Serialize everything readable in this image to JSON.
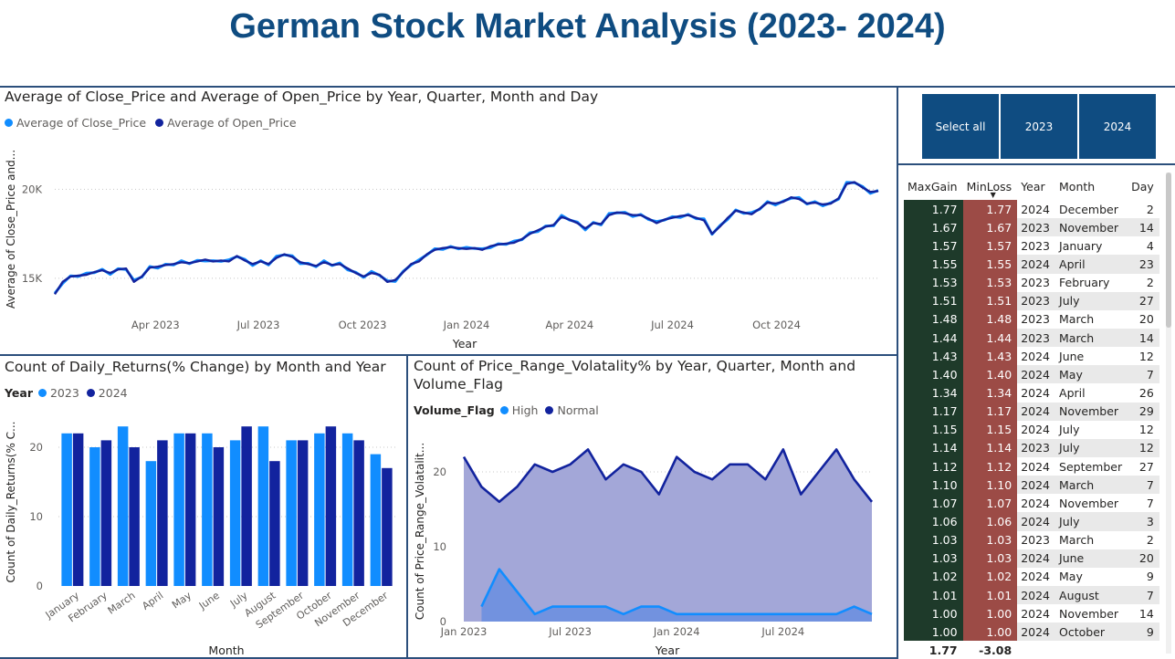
{
  "page_title": "German Stock Market Analysis (2023- 2024)",
  "colors": {
    "title": "#0f4c81",
    "light_series": "#118dff",
    "dark_series": "#12239e",
    "slicer": "#0f4c81",
    "gain_cell": "#1e3a2a",
    "loss_cell": "#9c4b46",
    "divider": "#2c4f7c"
  },
  "line_chart": {
    "title": "Average of Close_Price and Average of Open_Price by Year, Quarter, Month and Day",
    "chart_data": {
      "type": "line",
      "series": [
        {
          "name": "Average of Close_Price",
          "color": "#118dff"
        },
        {
          "name": "Average of Open_Price",
          "color": "#12239e"
        }
      ],
      "xlabel": "Year",
      "ylabel": "Average of Close_Price and...",
      "x_ticks": [
        "Apr 2023",
        "Jul 2023",
        "Oct 2023",
        "Jan 2024",
        "Apr 2024",
        "Jul 2024",
        "Oct 2024"
      ],
      "y_ticks": [
        "15K",
        "20K"
      ],
      "ylim": [
        13200,
        21200
      ],
      "xlim": [
        "2023-01-02",
        "2024-12-30"
      ],
      "points": [
        [
          "2023-01-02",
          14100
        ],
        [
          "2023-01-09",
          14800
        ],
        [
          "2023-01-16",
          15100
        ],
        [
          "2023-01-23",
          15150
        ],
        [
          "2023-01-30",
          15200
        ],
        [
          "2023-02-06",
          15350
        ],
        [
          "2023-02-13",
          15450
        ],
        [
          "2023-02-20",
          15300
        ],
        [
          "2023-02-27",
          15500
        ],
        [
          "2023-03-06",
          15550
        ],
        [
          "2023-03-13",
          14800
        ],
        [
          "2023-03-20",
          15100
        ],
        [
          "2023-03-27",
          15600
        ],
        [
          "2023-04-03",
          15650
        ],
        [
          "2023-04-10",
          15750
        ],
        [
          "2023-04-17",
          15800
        ],
        [
          "2023-04-24",
          15900
        ],
        [
          "2023-05-01",
          15850
        ],
        [
          "2023-05-08",
          15950
        ],
        [
          "2023-05-15",
          16050
        ],
        [
          "2023-05-22",
          15950
        ],
        [
          "2023-05-29",
          16000
        ],
        [
          "2023-06-05",
          15950
        ],
        [
          "2023-06-12",
          16250
        ],
        [
          "2023-06-19",
          16000
        ],
        [
          "2023-06-26",
          15800
        ],
        [
          "2023-07-03",
          15950
        ],
        [
          "2023-07-10",
          15800
        ],
        [
          "2023-07-17",
          16150
        ],
        [
          "2023-07-24",
          16350
        ],
        [
          "2023-07-31",
          16200
        ],
        [
          "2023-08-07",
          15900
        ],
        [
          "2023-08-14",
          15800
        ],
        [
          "2023-08-21",
          15700
        ],
        [
          "2023-08-28",
          15900
        ],
        [
          "2023-09-04",
          15750
        ],
        [
          "2023-09-11",
          15800
        ],
        [
          "2023-09-18",
          15550
        ],
        [
          "2023-09-25",
          15300
        ],
        [
          "2023-10-02",
          15100
        ],
        [
          "2023-10-09",
          15300
        ],
        [
          "2023-10-16",
          15200
        ],
        [
          "2023-10-23",
          14800
        ],
        [
          "2023-10-30",
          14900
        ],
        [
          "2023-11-06",
          15350
        ],
        [
          "2023-11-13",
          15800
        ],
        [
          "2023-11-20",
          15950
        ],
        [
          "2023-11-27",
          16350
        ],
        [
          "2023-12-04",
          16600
        ],
        [
          "2023-12-11",
          16700
        ],
        [
          "2023-12-18",
          16750
        ],
        [
          "2023-12-25",
          16700
        ],
        [
          "2024-01-01",
          16650
        ],
        [
          "2024-01-08",
          16700
        ],
        [
          "2024-01-15",
          16600
        ],
        [
          "2024-01-22",
          16800
        ],
        [
          "2024-01-29",
          16900
        ],
        [
          "2024-02-05",
          16950
        ],
        [
          "2024-02-12",
          17000
        ],
        [
          "2024-02-19",
          17200
        ],
        [
          "2024-02-26",
          17500
        ],
        [
          "2024-03-04",
          17700
        ],
        [
          "2024-03-11",
          17900
        ],
        [
          "2024-03-18",
          18000
        ],
        [
          "2024-03-25",
          18450
        ],
        [
          "2024-04-01",
          18300
        ],
        [
          "2024-04-08",
          18100
        ],
        [
          "2024-04-15",
          17800
        ],
        [
          "2024-04-22",
          18100
        ],
        [
          "2024-04-29",
          18050
        ],
        [
          "2024-05-06",
          18550
        ],
        [
          "2024-05-13",
          18700
        ],
        [
          "2024-05-20",
          18650
        ],
        [
          "2024-05-27",
          18550
        ],
        [
          "2024-06-03",
          18550
        ],
        [
          "2024-06-10",
          18350
        ],
        [
          "2024-06-17",
          18100
        ],
        [
          "2024-06-24",
          18300
        ],
        [
          "2024-07-01",
          18400
        ],
        [
          "2024-07-08",
          18500
        ],
        [
          "2024-07-15",
          18550
        ],
        [
          "2024-07-22",
          18400
        ],
        [
          "2024-07-29",
          18250
        ],
        [
          "2024-08-05",
          17500
        ],
        [
          "2024-08-12",
          17900
        ],
        [
          "2024-08-19",
          18400
        ],
        [
          "2024-08-26",
          18800
        ],
        [
          "2024-09-02",
          18700
        ],
        [
          "2024-09-09",
          18600
        ],
        [
          "2024-09-16",
          18900
        ],
        [
          "2024-09-23",
          19250
        ],
        [
          "2024-09-30",
          19200
        ],
        [
          "2024-10-07",
          19300
        ],
        [
          "2024-10-14",
          19550
        ],
        [
          "2024-10-21",
          19450
        ],
        [
          "2024-10-28",
          19200
        ],
        [
          "2024-11-04",
          19250
        ],
        [
          "2024-11-11",
          19150
        ],
        [
          "2024-11-18",
          19200
        ],
        [
          "2024-11-25",
          19500
        ],
        [
          "2024-12-02",
          20300
        ],
        [
          "2024-12-09",
          20400
        ],
        [
          "2024-12-16",
          20100
        ],
        [
          "2024-12-23",
          19850
        ],
        [
          "2024-12-30",
          19900
        ]
      ]
    }
  },
  "bar_chart": {
    "title": "Count of Daily_Returns(% Change) by Month and Year",
    "legend_title": "Year",
    "chart_data": {
      "type": "bar",
      "categories": [
        "January",
        "February",
        "March",
        "April",
        "May",
        "June",
        "July",
        "August",
        "September",
        "October",
        "November",
        "December"
      ],
      "series": [
        {
          "name": "2023",
          "color": "#118dff",
          "values": [
            22,
            20,
            23,
            18,
            22,
            22,
            21,
            23,
            21,
            22,
            22,
            19
          ]
        },
        {
          "name": "2024",
          "color": "#12239e",
          "values": [
            22,
            21,
            20,
            21,
            22,
            20,
            23,
            18,
            21,
            23,
            21,
            17
          ]
        }
      ],
      "xlabel": "Month",
      "ylabel": "Count of Daily_Returns(% C...",
      "y_ticks": [
        0,
        10,
        20
      ],
      "ylim": [
        0,
        25
      ]
    }
  },
  "area_chart": {
    "title_line1": "Count of Price_Range_Volatality% by Year, Quarter, Month and",
    "title_line2": "Volume_Flag",
    "legend_title": "Volume_Flag",
    "chart_data": {
      "type": "area",
      "categories": [
        "Jan 2023",
        "Feb 2023",
        "Mar 2023",
        "Apr 2023",
        "May 2023",
        "Jun 2023",
        "Jul 2023",
        "Aug 2023",
        "Sep 2023",
        "Oct 2023",
        "Nov 2023",
        "Dec 2023",
        "Jan 2024",
        "Feb 2024",
        "Mar 2024",
        "Apr 2024",
        "May 2024",
        "Jun 2024",
        "Jul 2024",
        "Aug 2024",
        "Sep 2024",
        "Oct 2024",
        "Nov 2024",
        "Dec 2024"
      ],
      "series": [
        {
          "name": "High",
          "color": "#118dff",
          "values": [
            null,
            2,
            7,
            4,
            1,
            2,
            2,
            2,
            2,
            1,
            2,
            2,
            1,
            1,
            1,
            1,
            1,
            1,
            1,
            1,
            1,
            1,
            2,
            1
          ]
        },
        {
          "name": "Normal",
          "color": "#12239e",
          "values": [
            22,
            18,
            16,
            18,
            21,
            20,
            21,
            23,
            19,
            21,
            20,
            17,
            22,
            20,
            19,
            21,
            21,
            19,
            23,
            17,
            20,
            23,
            19,
            16
          ]
        }
      ],
      "xlabel": "Year",
      "ylabel": "Count of Price_Range_Volatalit...",
      "x_ticks": [
        "Jan 2023",
        "Jul 2023",
        "Jan 2024",
        "Jul 2024"
      ],
      "y_ticks": [
        0,
        10,
        20
      ],
      "ylim": [
        0,
        25
      ]
    }
  },
  "slicer": {
    "buttons": [
      "Select all",
      "2023",
      "2024"
    ]
  },
  "table": {
    "headers": [
      "MaxGain",
      "MinLoss",
      "Year",
      "Month",
      "Day"
    ],
    "rows": [
      [
        "1.77",
        "1.77",
        "2024",
        "December",
        "2"
      ],
      [
        "1.67",
        "1.67",
        "2023",
        "November",
        "14"
      ],
      [
        "1.57",
        "1.57",
        "2023",
        "January",
        "4"
      ],
      [
        "1.55",
        "1.55",
        "2024",
        "April",
        "23"
      ],
      [
        "1.53",
        "1.53",
        "2023",
        "February",
        "2"
      ],
      [
        "1.51",
        "1.51",
        "2023",
        "July",
        "27"
      ],
      [
        "1.48",
        "1.48",
        "2023",
        "March",
        "20"
      ],
      [
        "1.44",
        "1.44",
        "2023",
        "March",
        "14"
      ],
      [
        "1.43",
        "1.43",
        "2024",
        "June",
        "12"
      ],
      [
        "1.40",
        "1.40",
        "2024",
        "May",
        "7"
      ],
      [
        "1.34",
        "1.34",
        "2024",
        "April",
        "26"
      ],
      [
        "1.17",
        "1.17",
        "2024",
        "November",
        "29"
      ],
      [
        "1.15",
        "1.15",
        "2024",
        "July",
        "12"
      ],
      [
        "1.14",
        "1.14",
        "2023",
        "July",
        "12"
      ],
      [
        "1.12",
        "1.12",
        "2024",
        "September",
        "27"
      ],
      [
        "1.10",
        "1.10",
        "2024",
        "March",
        "7"
      ],
      [
        "1.07",
        "1.07",
        "2024",
        "November",
        "7"
      ],
      [
        "1.06",
        "1.06",
        "2024",
        "July",
        "3"
      ],
      [
        "1.03",
        "1.03",
        "2023",
        "March",
        "2"
      ],
      [
        "1.03",
        "1.03",
        "2024",
        "June",
        "20"
      ],
      [
        "1.02",
        "1.02",
        "2024",
        "May",
        "9"
      ],
      [
        "1.01",
        "1.01",
        "2024",
        "August",
        "7"
      ],
      [
        "1.00",
        "1.00",
        "2024",
        "November",
        "14"
      ],
      [
        "1.00",
        "1.00",
        "2024",
        "October",
        "9"
      ]
    ],
    "totals": [
      "1.77",
      "-3.08"
    ]
  }
}
